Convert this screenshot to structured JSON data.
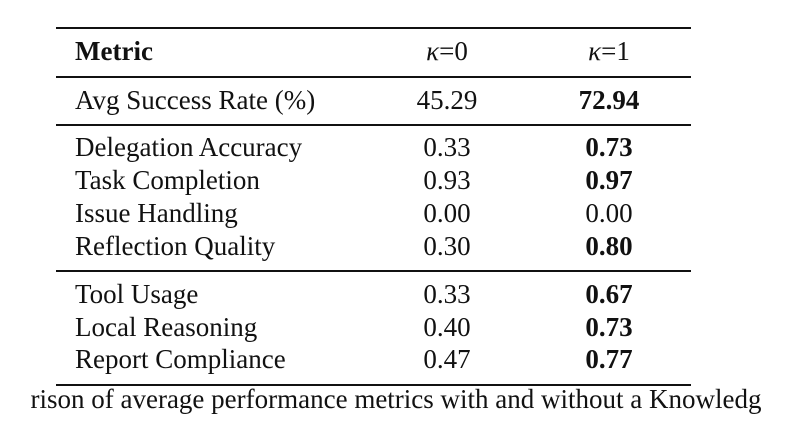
{
  "table": {
    "header": {
      "metric": "Metric",
      "k0_symbol": "κ",
      "k0_eq": "=0",
      "k1_symbol": "κ",
      "k1_eq": "=1"
    },
    "summary": [
      {
        "metric": "Avg Success Rate (%)",
        "k0": "45.29",
        "k1": "72.94",
        "k1_bold": true
      }
    ],
    "group1": [
      {
        "metric": "Delegation Accuracy",
        "k0": "0.33",
        "k1": "0.73",
        "k1_bold": true
      },
      {
        "metric": "Task Completion",
        "k0": "0.93",
        "k1": "0.97",
        "k1_bold": true
      },
      {
        "metric": "Issue Handling",
        "k0": "0.00",
        "k1": "0.00",
        "k1_bold": false
      },
      {
        "metric": "Reflection Quality",
        "k0": "0.30",
        "k1": "0.80",
        "k1_bold": true
      }
    ],
    "group2": [
      {
        "metric": "Tool Usage",
        "k0": "0.33",
        "k1": "0.67",
        "k1_bold": true
      },
      {
        "metric": "Local Reasoning",
        "k0": "0.40",
        "k1": "0.73",
        "k1_bold": true
      },
      {
        "metric": "Report Compliance",
        "k0": "0.47",
        "k1": "0.77",
        "k1_bold": true
      }
    ]
  },
  "caption": "rison of average performance metrics with and without a Knowledg"
}
